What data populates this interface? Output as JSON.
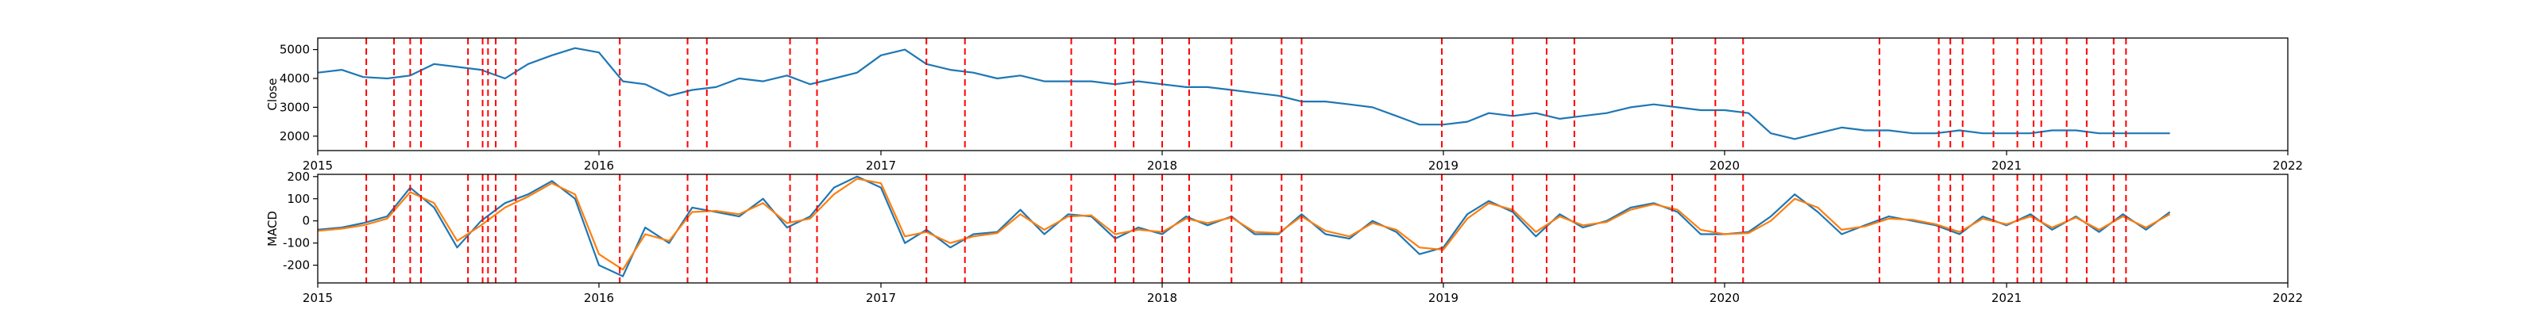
{
  "chart_data": [
    {
      "type": "line",
      "ylabel": "Close",
      "xlim": [
        "2015-01-01",
        "2022-01-01"
      ],
      "ylim": [
        1500,
        5400
      ],
      "yticks": [
        2000,
        3000,
        4000,
        5000
      ],
      "xticks": [
        "2015",
        "2016",
        "2017",
        "2018",
        "2019",
        "2020",
        "2021",
        "2022"
      ],
      "series": [
        {
          "color": "#1f77b4",
          "x": [
            "2015-01-01",
            "2015-02-01",
            "2015-03-01",
            "2015-04-01",
            "2015-05-01",
            "2015-06-01",
            "2015-07-01",
            "2015-08-01",
            "2015-09-01",
            "2015-10-01",
            "2015-11-01",
            "2015-12-01",
            "2016-01-01",
            "2016-02-01",
            "2016-03-01",
            "2016-04-01",
            "2016-05-01",
            "2016-06-01",
            "2016-07-01",
            "2016-08-01",
            "2016-09-01",
            "2016-10-01",
            "2016-11-01",
            "2016-12-01",
            "2017-01-01",
            "2017-02-01",
            "2017-03-01",
            "2017-04-01",
            "2017-05-01",
            "2017-06-01",
            "2017-07-01",
            "2017-08-01",
            "2017-09-01",
            "2017-10-01",
            "2017-11-01",
            "2017-12-01",
            "2018-01-01",
            "2018-02-01",
            "2018-03-01",
            "2018-04-01",
            "2018-05-01",
            "2018-06-01",
            "2018-07-01",
            "2018-08-01",
            "2018-09-01",
            "2018-10-01",
            "2018-11-01",
            "2018-12-01",
            "2019-01-01",
            "2019-02-01",
            "2019-03-01",
            "2019-04-01",
            "2019-05-01",
            "2019-06-01",
            "2019-07-01",
            "2019-08-01",
            "2019-09-01",
            "2019-10-01",
            "2019-11-01",
            "2019-12-01",
            "2020-01-01",
            "2020-02-01",
            "2020-03-01",
            "2020-04-01",
            "2020-05-01",
            "2020-06-01",
            "2020-07-01",
            "2020-08-01",
            "2020-09-01",
            "2020-10-01",
            "2020-11-01",
            "2020-12-01",
            "2021-01-01",
            "2021-02-01",
            "2021-03-01",
            "2021-04-01",
            "2021-05-01",
            "2021-06-01",
            "2021-07-01",
            "2021-08-01"
          ],
          "y": [
            4200,
            4300,
            4050,
            4000,
            4100,
            4500,
            4400,
            4300,
            4000,
            4500,
            4800,
            5050,
            4900,
            3900,
            3800,
            3400,
            3600,
            3700,
            4000,
            3900,
            4100,
            3800,
            4000,
            4200,
            4800,
            5000,
            4500,
            4300,
            4200,
            4000,
            4100,
            3900,
            3900,
            3900,
            3800,
            3900,
            3800,
            3700,
            3700,
            3600,
            3500,
            3400,
            3200,
            3200,
            3100,
            3000,
            2700,
            2400,
            2400,
            2500,
            2800,
            2700,
            2800,
            2600,
            2700,
            2800,
            3000,
            3100,
            3000,
            2900,
            2900,
            2800,
            2100,
            1900,
            2100,
            2300,
            2200,
            2200,
            2100,
            2100,
            2200,
            2100,
            2100,
            2100,
            2200,
            2200,
            2100,
            2100,
            2100,
            2100
          ]
        }
      ]
    },
    {
      "type": "line",
      "ylabel": "MACD",
      "xlim": [
        "2015-01-01",
        "2022-01-01"
      ],
      "ylim": [
        -280,
        210
      ],
      "yticks": [
        -200,
        -100,
        0,
        100,
        200
      ],
      "xticks": [
        "2015",
        "2016",
        "2017",
        "2018",
        "2019",
        "2020",
        "2021",
        "2022"
      ],
      "series": [
        {
          "color": "#1f77b4",
          "x": [
            "2015-01-01",
            "2015-02-01",
            "2015-03-01",
            "2015-04-01",
            "2015-05-01",
            "2015-06-01",
            "2015-07-01",
            "2015-08-01",
            "2015-09-01",
            "2015-10-01",
            "2015-11-01",
            "2015-12-01",
            "2016-01-01",
            "2016-02-01",
            "2016-03-01",
            "2016-04-01",
            "2016-05-01",
            "2016-06-01",
            "2016-07-01",
            "2016-08-01",
            "2016-09-01",
            "2016-10-01",
            "2016-11-01",
            "2016-12-01",
            "2017-01-01",
            "2017-02-01",
            "2017-03-01",
            "2017-04-01",
            "2017-05-01",
            "2017-06-01",
            "2017-07-01",
            "2017-08-01",
            "2017-09-01",
            "2017-10-01",
            "2017-11-01",
            "2017-12-01",
            "2018-01-01",
            "2018-02-01",
            "2018-03-01",
            "2018-04-01",
            "2018-05-01",
            "2018-06-01",
            "2018-07-01",
            "2018-08-01",
            "2018-09-01",
            "2018-10-01",
            "2018-11-01",
            "2018-12-01",
            "2019-01-01",
            "2019-02-01",
            "2019-03-01",
            "2019-04-01",
            "2019-05-01",
            "2019-06-01",
            "2019-07-01",
            "2019-08-01",
            "2019-09-01",
            "2019-10-01",
            "2019-11-01",
            "2019-12-01",
            "2020-01-01",
            "2020-02-01",
            "2020-03-01",
            "2020-04-01",
            "2020-05-01",
            "2020-06-01",
            "2020-07-01",
            "2020-08-01",
            "2020-09-01",
            "2020-10-01",
            "2020-11-01",
            "2020-12-01",
            "2021-01-01",
            "2021-02-01",
            "2021-03-01",
            "2021-04-01",
            "2021-05-01",
            "2021-06-01",
            "2021-07-01",
            "2021-08-01"
          ],
          "y": [
            -40,
            -30,
            -10,
            20,
            150,
            60,
            -120,
            0,
            80,
            120,
            180,
            100,
            -200,
            -250,
            -30,
            -100,
            60,
            40,
            20,
            100,
            -30,
            20,
            150,
            200,
            150,
            -100,
            -40,
            -120,
            -60,
            -50,
            50,
            -60,
            30,
            20,
            -80,
            -30,
            -60,
            20,
            -20,
            20,
            -60,
            -60,
            30,
            -60,
            -80,
            0,
            -50,
            -150,
            -120,
            30,
            90,
            40,
            -70,
            30,
            -30,
            0,
            60,
            80,
            40,
            -60,
            -60,
            -50,
            20,
            120,
            40,
            -60,
            -20,
            20,
            0,
            -20,
            -60,
            20,
            -20,
            30,
            -40,
            20,
            -50,
            30,
            -40,
            40
          ]
        },
        {
          "color": "#ff7f0e",
          "x": [
            "2015-01-01",
            "2015-02-01",
            "2015-03-01",
            "2015-04-01",
            "2015-05-01",
            "2015-06-01",
            "2015-07-01",
            "2015-08-01",
            "2015-09-01",
            "2015-10-01",
            "2015-11-01",
            "2015-12-01",
            "2016-01-01",
            "2016-02-01",
            "2016-03-01",
            "2016-04-01",
            "2016-05-01",
            "2016-06-01",
            "2016-07-01",
            "2016-08-01",
            "2016-09-01",
            "2016-10-01",
            "2016-11-01",
            "2016-12-01",
            "2017-01-01",
            "2017-02-01",
            "2017-03-01",
            "2017-04-01",
            "2017-05-01",
            "2017-06-01",
            "2017-07-01",
            "2017-08-01",
            "2017-09-01",
            "2017-10-01",
            "2017-11-01",
            "2017-12-01",
            "2018-01-01",
            "2018-02-01",
            "2018-03-01",
            "2018-04-01",
            "2018-05-01",
            "2018-06-01",
            "2018-07-01",
            "2018-08-01",
            "2018-09-01",
            "2018-10-01",
            "2018-11-01",
            "2018-12-01",
            "2019-01-01",
            "2019-02-01",
            "2019-03-01",
            "2019-04-01",
            "2019-05-01",
            "2019-06-01",
            "2019-07-01",
            "2019-08-01",
            "2019-09-01",
            "2019-10-01",
            "2019-11-01",
            "2019-12-01",
            "2020-01-01",
            "2020-02-01",
            "2020-03-01",
            "2020-04-01",
            "2020-05-01",
            "2020-06-01",
            "2020-07-01",
            "2020-08-01",
            "2020-09-01",
            "2020-10-01",
            "2020-11-01",
            "2020-12-01",
            "2021-01-01",
            "2021-02-01",
            "2021-03-01",
            "2021-04-01",
            "2021-05-01",
            "2021-06-01",
            "2021-07-01",
            "2021-08-01"
          ],
          "y": [
            -45,
            -35,
            -20,
            10,
            130,
            80,
            -90,
            -20,
            60,
            110,
            170,
            120,
            -150,
            -220,
            -60,
            -90,
            40,
            45,
            30,
            80,
            -10,
            10,
            120,
            190,
            170,
            -70,
            -50,
            -100,
            -70,
            -55,
            30,
            -40,
            20,
            25,
            -60,
            -40,
            -50,
            10,
            -10,
            15,
            -50,
            -55,
            20,
            -45,
            -70,
            -10,
            -40,
            -120,
            -130,
            10,
            80,
            50,
            -50,
            20,
            -20,
            -5,
            50,
            75,
            50,
            -40,
            -60,
            -55,
            0,
            100,
            60,
            -40,
            -25,
            10,
            5,
            -15,
            -50,
            10,
            -15,
            20,
            -30,
            15,
            -40,
            20,
            -30,
            30
          ]
        }
      ]
    }
  ],
  "vlines": {
    "color": "#ff0000",
    "dates": [
      "2015-03-05",
      "2015-04-10",
      "2015-05-01",
      "2015-05-15",
      "2015-07-15",
      "2015-08-03",
      "2015-08-10",
      "2015-08-20",
      "2015-09-15",
      "2016-01-28",
      "2016-04-25",
      "2016-05-20",
      "2016-09-05",
      "2016-10-10",
      "2017-03-01",
      "2017-04-20",
      "2017-09-05",
      "2017-11-01",
      "2017-11-25",
      "2018-01-01",
      "2018-02-05",
      "2018-04-01",
      "2018-06-05",
      "2018-07-01",
      "2018-12-30",
      "2019-04-01",
      "2019-05-15",
      "2019-06-20",
      "2019-10-25",
      "2019-12-20",
      "2020-01-25",
      "2020-07-20",
      "2020-10-05",
      "2020-10-20",
      "2020-11-05",
      "2020-12-15",
      "2021-01-15",
      "2021-02-05",
      "2021-02-15",
      "2021-03-20",
      "2021-04-15",
      "2021-05-20",
      "2021-06-05"
    ]
  }
}
